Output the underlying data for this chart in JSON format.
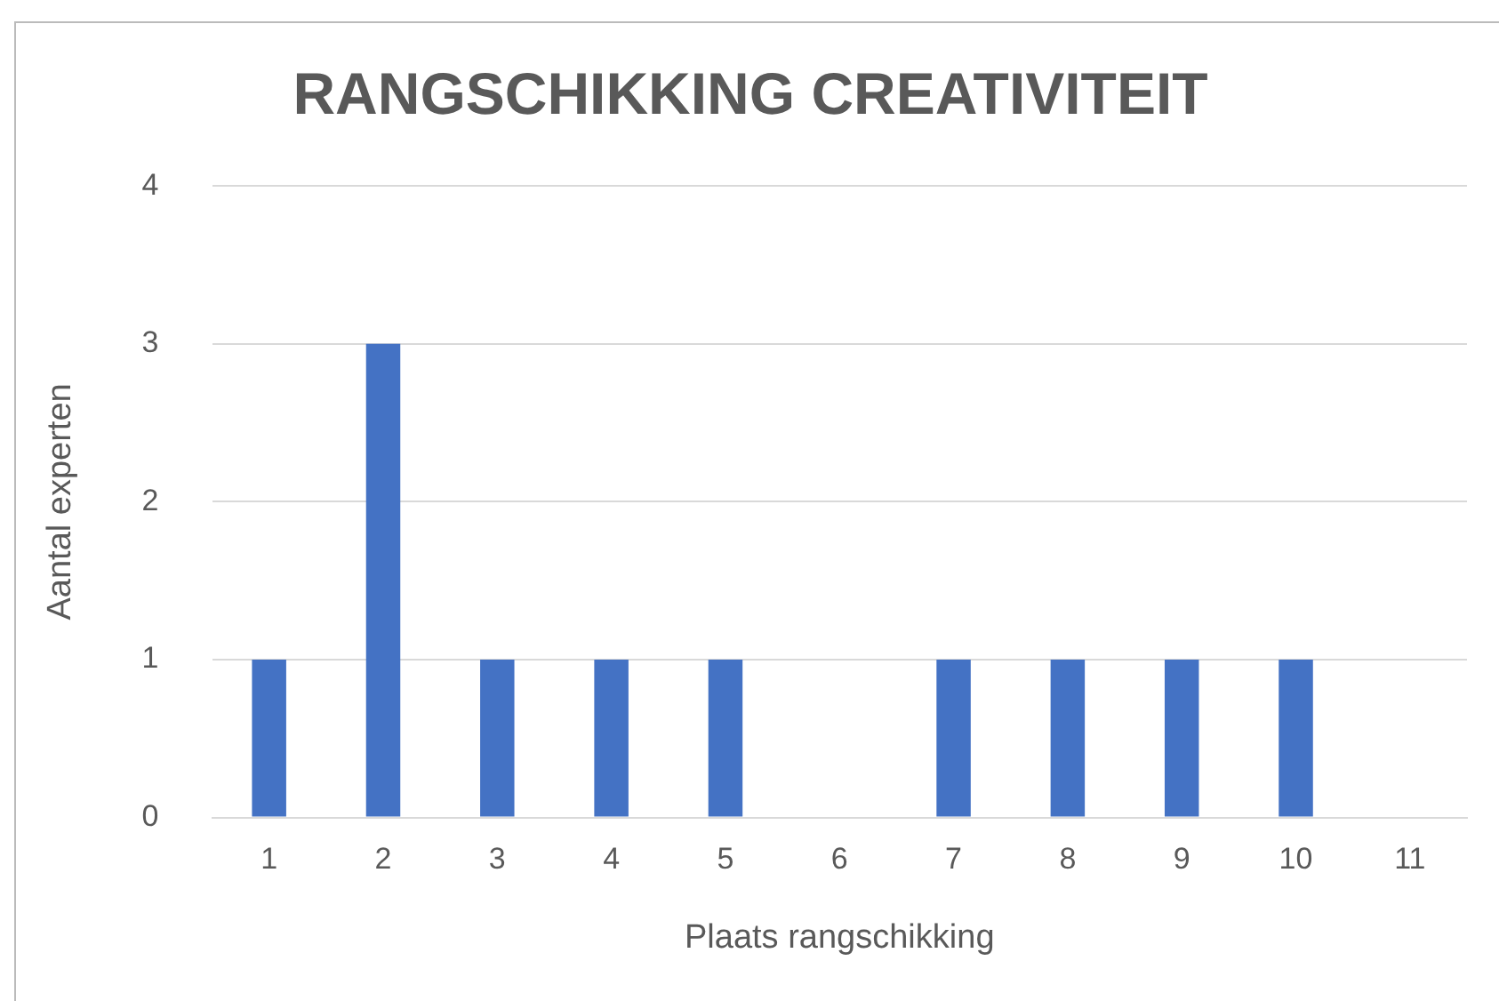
{
  "chart_data": {
    "type": "bar",
    "title": "RANGSCHIKKING CREATIVITEIT",
    "xlabel": "Plaats rangschikking",
    "ylabel": "Aantal experten",
    "categories": [
      "1",
      "2",
      "3",
      "4",
      "5",
      "6",
      "7",
      "8",
      "9",
      "10",
      "11"
    ],
    "values": [
      1,
      3,
      1,
      1,
      1,
      0,
      1,
      1,
      1,
      1,
      0
    ],
    "color": "#4472c4",
    "ylim": [
      0,
      4
    ],
    "yticks": [
      0,
      1,
      2,
      3,
      4
    ],
    "grid": "y",
    "legend": false
  }
}
